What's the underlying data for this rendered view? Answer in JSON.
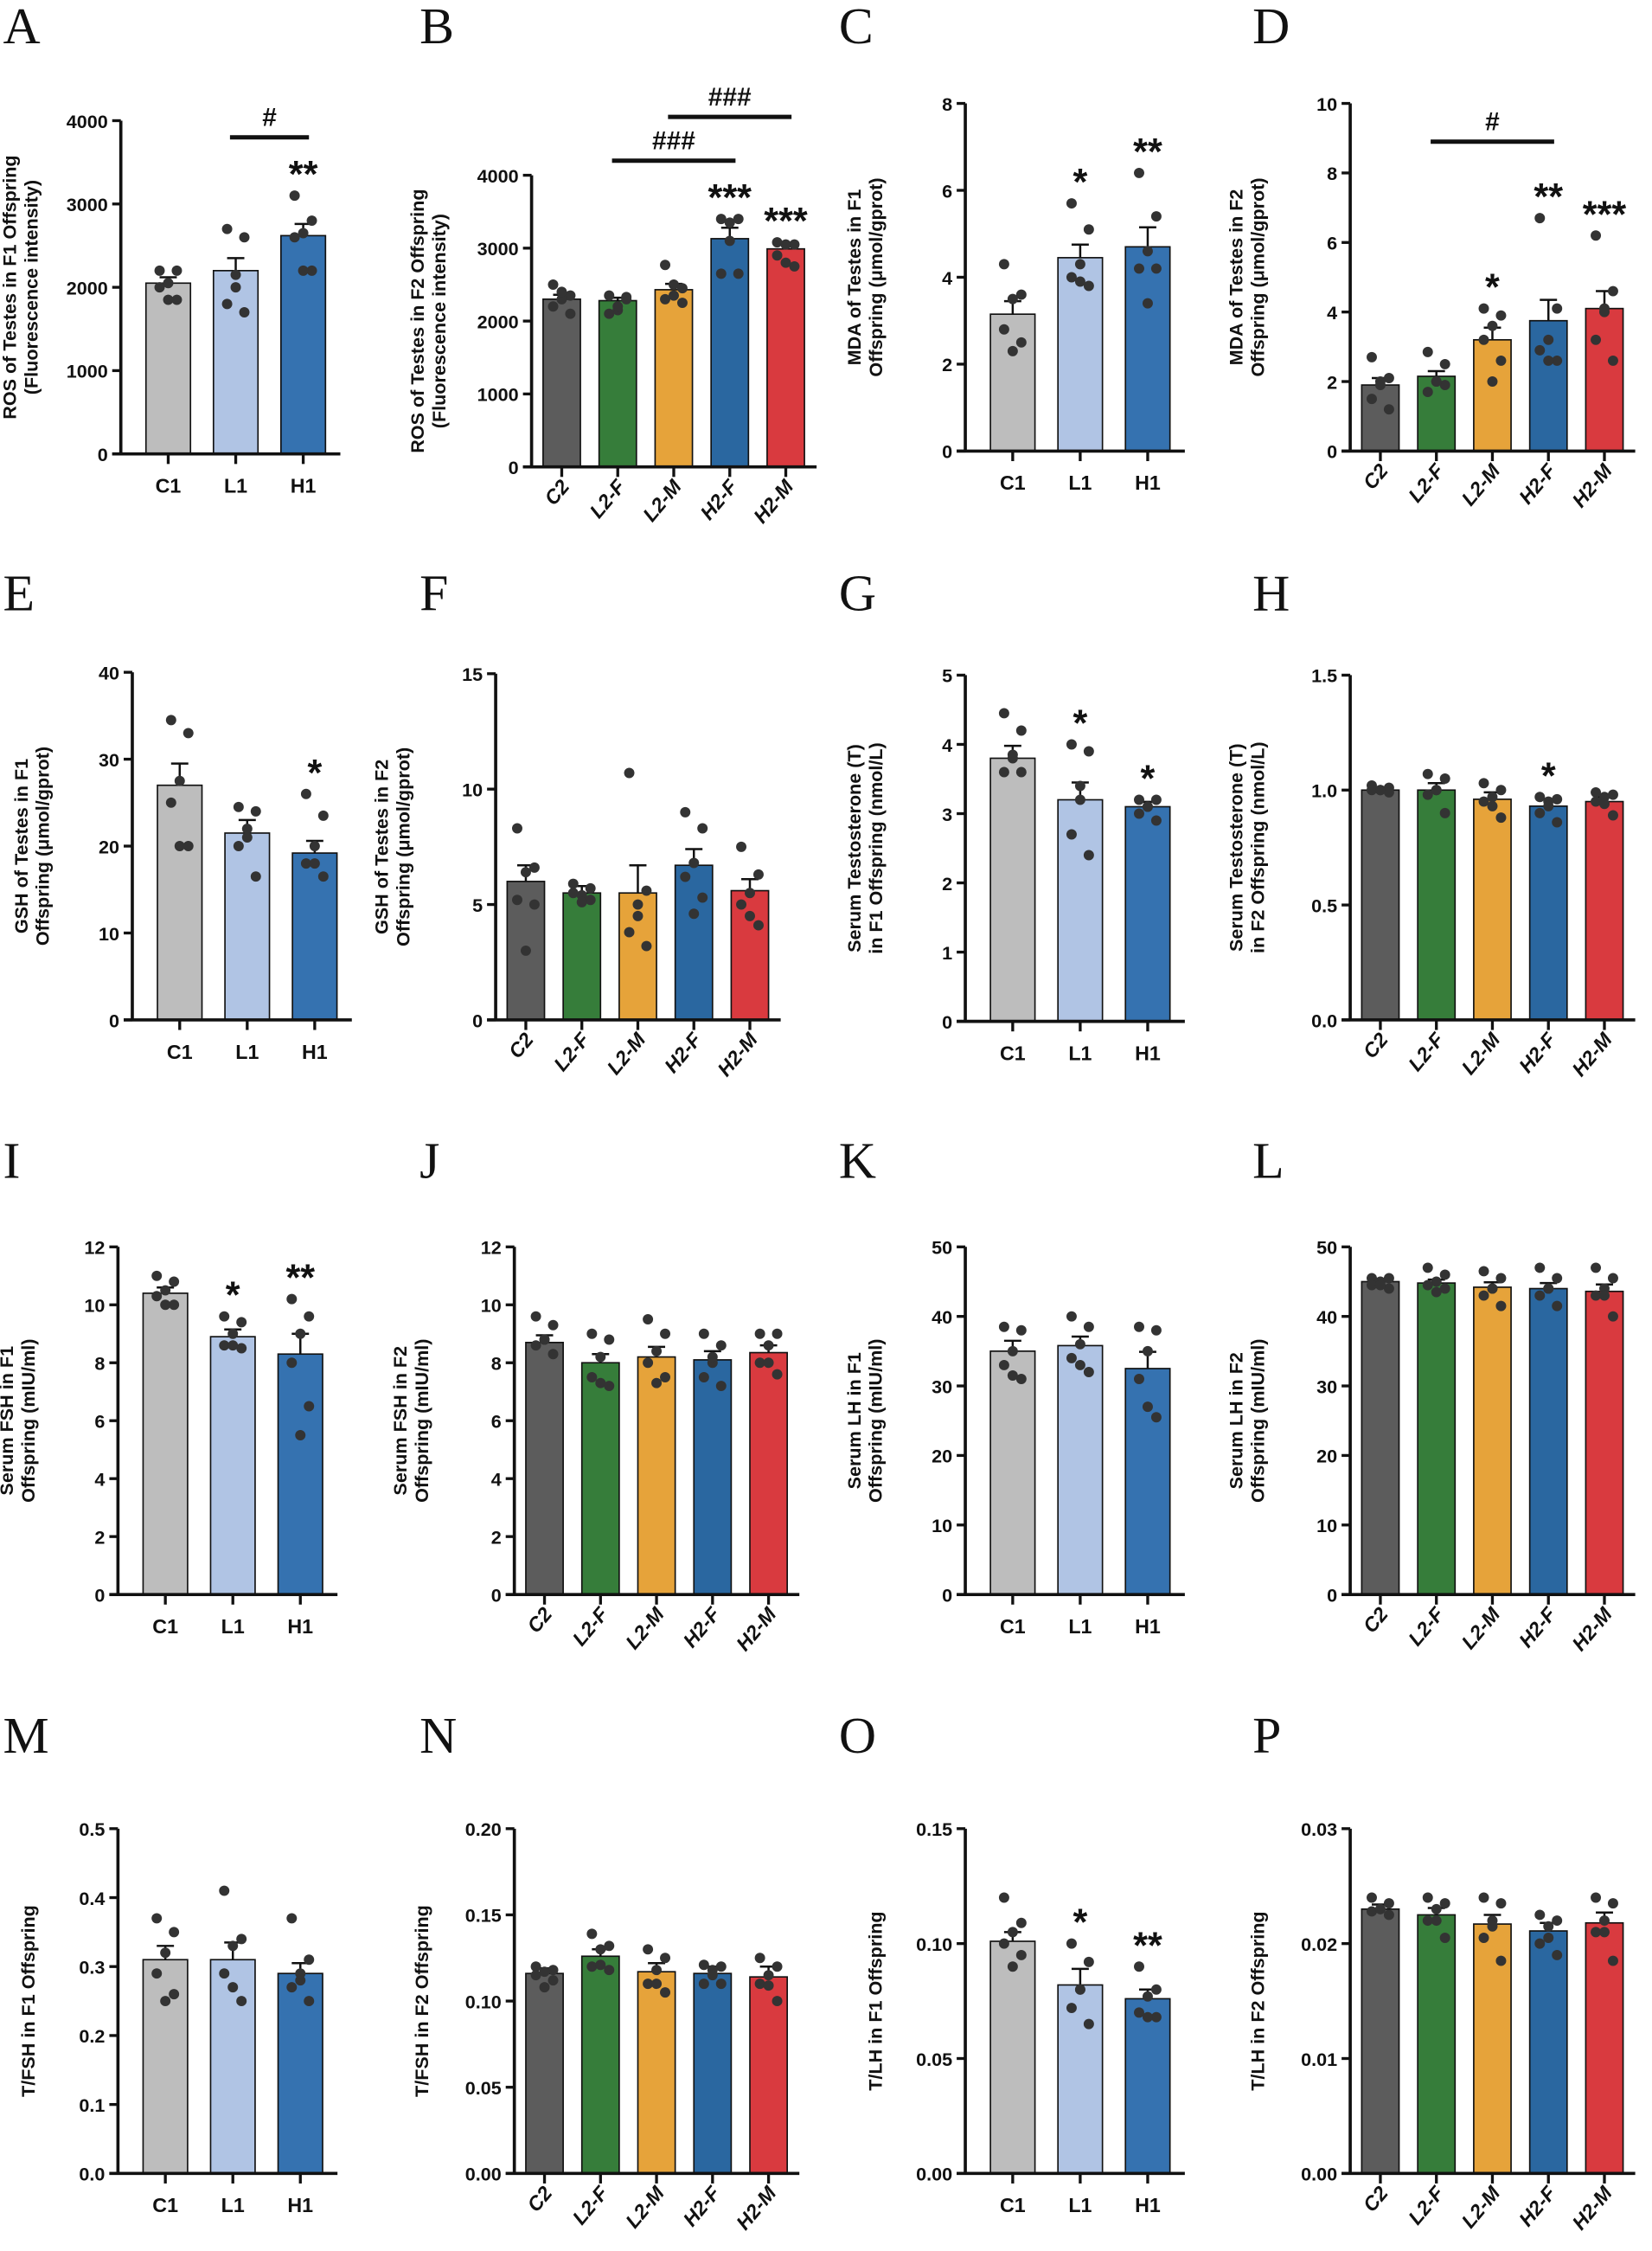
{
  "colors": {
    "C1": "#bdbdbd",
    "L1": "#b0c4e4",
    "H1": "#3572b0",
    "C2": "#5c5c5c",
    "L2-F": "#367d3a",
    "L2-M": "#e6a33a",
    "H2-F": "#2a67a0",
    "H2-M": "#d93a3f"
  },
  "chart_data": [
    {
      "letter": "A",
      "type": "bar",
      "ylabel": [
        "ROS of Testes in F1 Offspring",
        "(Fluorescence intensity)"
      ],
      "ylim": [
        0,
        4000
      ],
      "ticks": [
        "0",
        "1000",
        "2000",
        "3000",
        "4000"
      ],
      "categories": [
        "C1",
        "L1",
        "H1"
      ],
      "means": [
        2050,
        2200,
        2620
      ],
      "sem": [
        70,
        150,
        140
      ],
      "points": [
        [
          2200,
          2200,
          2050,
          2000,
          1850,
          1850
        ],
        [
          2700,
          2600,
          2000,
          1800,
          1700,
          2150
        ],
        [
          3100,
          2800,
          2650,
          2600,
          2200,
          2200
        ]
      ],
      "sig": [
        "",
        "",
        "**"
      ],
      "brackets": [
        {
          "from": 1,
          "to": 2,
          "level": 3800,
          "label": "#"
        }
      ]
    },
    {
      "letter": "B",
      "type": "bar",
      "ylabel": [
        "ROS of Testes in F2 Offspring",
        "(Fluorescence intensity)"
      ],
      "ylim": [
        0,
        4000
      ],
      "ticks": [
        "0",
        "1000",
        "2000",
        "3000",
        "4000"
      ],
      "categories": [
        "C2",
        "L2-F",
        "L2-M",
        "H2-F",
        "H2-M"
      ],
      "means": [
        2300,
        2280,
        2430,
        3130,
        2990
      ],
      "sem": [
        60,
        40,
        80,
        150,
        60
      ],
      "points": [
        [
          2500,
          2350,
          2300,
          2200,
          2100,
          2400
        ],
        [
          2350,
          2330,
          2150,
          2100,
          2300,
          2200
        ],
        [
          2770,
          2450,
          2500,
          2300,
          2250,
          2350
        ],
        [
          3400,
          3400,
          3350,
          2650,
          2650,
          3100
        ],
        [
          3080,
          3050,
          3050,
          2900,
          2750,
          2800
        ]
      ],
      "sig": [
        "",
        "",
        "",
        "***",
        "***"
      ],
      "brackets": [
        {
          "from": 1,
          "to": 3,
          "level": 4200,
          "label": "###"
        },
        {
          "from": 2,
          "to": 4,
          "level": 4800,
          "label": "###"
        }
      ]
    },
    {
      "letter": "C",
      "type": "bar",
      "ylabel": [
        "MDA of Testes in F1",
        "Offspring (μmol/gprot)"
      ],
      "ylim": [
        0,
        8
      ],
      "ticks": [
        "0",
        "2",
        "4",
        "6",
        "8"
      ],
      "categories": [
        "C1",
        "L1",
        "H1"
      ],
      "means": [
        3.15,
        4.45,
        4.7
      ],
      "sem": [
        0.3,
        0.3,
        0.45
      ],
      "points": [
        [
          4.3,
          3.6,
          3.5,
          2.8,
          2.5,
          2.3
        ],
        [
          5.7,
          5.1,
          4.3,
          4.0,
          3.8,
          3.9
        ],
        [
          6.4,
          5.4,
          4.6,
          4.2,
          4.2,
          3.4
        ]
      ],
      "sig": [
        "",
        "*",
        "**"
      ],
      "brackets": []
    },
    {
      "letter": "D",
      "type": "bar",
      "ylabel": [
        "MDA of Testes in F2",
        "Offspring (μmol/gprot)"
      ],
      "ylim": [
        0,
        10
      ],
      "ticks": [
        "0",
        "2",
        "4",
        "6",
        "8",
        "10"
      ],
      "categories": [
        "C2",
        "L2-F",
        "L2-M",
        "H2-F",
        "H2-M"
      ],
      "means": [
        1.9,
        2.15,
        3.2,
        3.75,
        4.1
      ],
      "sem": [
        0.2,
        0.15,
        0.35,
        0.6,
        0.5
      ],
      "points": [
        [
          2.7,
          2.1,
          2.0,
          1.5,
          1.2,
          1.9
        ],
        [
          2.85,
          2.5,
          2.0,
          1.7,
          1.9,
          2.0
        ],
        [
          4.1,
          3.9,
          3.6,
          3.2,
          2.6,
          2.0
        ],
        [
          6.7,
          4.1,
          3.2,
          2.9,
          2.6,
          2.6
        ],
        [
          6.2,
          4.6,
          4.1,
          3.2,
          2.6,
          4.0
        ]
      ],
      "sig": [
        "",
        "",
        "*",
        "**",
        "***"
      ],
      "brackets": [
        {
          "from": 1,
          "to": 3,
          "level": 8.9,
          "label": "#"
        }
      ]
    },
    {
      "letter": "E",
      "type": "bar",
      "ylabel": [
        "GSH of Testes in F1",
        "Offspring (μmol/gprot)"
      ],
      "ylim": [
        0,
        40
      ],
      "ticks": [
        "0",
        "10",
        "20",
        "30",
        "40"
      ],
      "categories": [
        "C1",
        "L1",
        "H1"
      ],
      "means": [
        27,
        21.5,
        19.2
      ],
      "sem": [
        2.5,
        1.5,
        1.4
      ],
      "points": [
        [
          34.5,
          33,
          27.5,
          25,
          20,
          20
        ],
        [
          24.5,
          24,
          21,
          20,
          16.5,
          22
        ],
        [
          26,
          23.5,
          20,
          18,
          16.5,
          18
        ]
      ],
      "sig": [
        "",
        "",
        "*"
      ],
      "brackets": []
    },
    {
      "letter": "F",
      "type": "bar",
      "ylabel": [
        "GSH of Testes in F2",
        "Offspring (μmol/gprot)"
      ],
      "ylim": [
        0,
        15
      ],
      "ticks": [
        "0",
        "5",
        "10",
        "15"
      ],
      "categories": [
        "C2",
        "L2-F",
        "L2-M",
        "H2-F",
        "H2-M"
      ],
      "means": [
        6.0,
        5.5,
        5.5,
        6.7,
        5.6
      ],
      "sem": [
        0.7,
        0.3,
        1.2,
        0.7,
        0.5
      ],
      "points": [
        [
          8.3,
          6.6,
          6.4,
          5.2,
          5.0,
          3.0
        ],
        [
          5.9,
          5.7,
          5.4,
          5.5,
          5.2,
          5.1
        ],
        [
          10.7,
          5.6,
          5.0,
          3.8,
          3.2,
          4.5
        ],
        [
          9.0,
          8.3,
          6.8,
          6.2,
          5.3,
          4.6
        ],
        [
          7.5,
          6.3,
          5.5,
          5.0,
          4.1,
          4.5
        ]
      ],
      "sig": [
        "",
        "",
        "",
        "",
        ""
      ],
      "brackets": []
    },
    {
      "letter": "G",
      "type": "bar",
      "ylabel": [
        "Serum Testosterone (T)",
        "in F1 Offspring (nmol/L)"
      ],
      "ylim": [
        0,
        5
      ],
      "ticks": [
        "0",
        "1",
        "2",
        "3",
        "4",
        "5"
      ],
      "categories": [
        "C1",
        "L1",
        "H1"
      ],
      "means": [
        3.8,
        3.2,
        3.1
      ],
      "sem": [
        0.18,
        0.25,
        0.07
      ],
      "points": [
        [
          4.45,
          4.2,
          3.8,
          3.6,
          3.6,
          3.85
        ],
        [
          4.0,
          3.9,
          3.4,
          2.7,
          2.4,
          3.2
        ],
        [
          3.2,
          3.2,
          3.1,
          3.0,
          2.9,
          3.1
        ]
      ],
      "sig": [
        "",
        "*",
        "*"
      ],
      "brackets": []
    },
    {
      "letter": "H",
      "type": "bar",
      "ylabel": [
        "Serum Testosterone (T)",
        "in F2 Offspring (nmol/L)"
      ],
      "ylim": [
        0,
        1.5
      ],
      "ticks": [
        "0.0",
        "0.5",
        "1.0",
        "1.5"
      ],
      "categories": [
        "C2",
        "L2-F",
        "L2-M",
        "H2-F",
        "H2-M"
      ],
      "means": [
        1.0,
        1.0,
        0.96,
        0.93,
        0.95
      ],
      "sem": [
        0.01,
        0.03,
        0.03,
        0.03,
        0.02
      ],
      "points": [
        [
          1.02,
          1.01,
          1.0,
          1.0,
          0.99,
          1.0
        ],
        [
          1.07,
          1.05,
          1.0,
          0.98,
          0.9,
          1.0
        ],
        [
          1.03,
          1.0,
          0.97,
          0.95,
          0.88,
          0.93
        ],
        [
          0.97,
          0.96,
          0.95,
          0.9,
          0.86,
          0.93
        ],
        [
          0.99,
          0.98,
          0.97,
          0.95,
          0.89,
          0.94
        ]
      ],
      "sig": [
        "",
        "",
        "",
        "*",
        ""
      ],
      "brackets": []
    },
    {
      "letter": "I",
      "type": "bar",
      "ylabel": [
        "Serum FSH in F1",
        "Offspring (mIU/ml)"
      ],
      "ylim": [
        0,
        12
      ],
      "ticks": [
        "0",
        "2",
        "4",
        "6",
        "8",
        "10",
        "12"
      ],
      "categories": [
        "C1",
        "L1",
        "H1"
      ],
      "means": [
        10.4,
        8.9,
        8.3
      ],
      "sem": [
        0.2,
        0.25,
        0.7
      ],
      "points": [
        [
          11.0,
          10.8,
          10.5,
          10.3,
          10.0,
          10.0
        ],
        [
          9.6,
          9.4,
          9.0,
          8.6,
          8.5,
          8.6
        ],
        [
          10.2,
          9.6,
          9.0,
          8.0,
          6.5,
          5.5
        ]
      ],
      "sig": [
        "",
        "*",
        "**"
      ],
      "brackets": []
    },
    {
      "letter": "J",
      "type": "bar",
      "ylabel": [
        "Serum FSH in F2",
        "Offspring (mIU/ml)"
      ],
      "ylim": [
        0,
        12
      ],
      "ticks": [
        "0",
        "2",
        "4",
        "6",
        "8",
        "10",
        "12"
      ],
      "categories": [
        "C2",
        "L2-F",
        "L2-M",
        "H2-F",
        "H2-M"
      ],
      "means": [
        8.7,
        8.0,
        8.2,
        8.1,
        8.35
      ],
      "sem": [
        0.25,
        0.3,
        0.35,
        0.3,
        0.25
      ],
      "points": [
        [
          9.6,
          9.3,
          8.8,
          8.6,
          8.3,
          8.8
        ],
        [
          9.0,
          8.8,
          8.2,
          7.5,
          7.2,
          7.3
        ],
        [
          9.5,
          9.0,
          8.4,
          8.0,
          7.5,
          7.3
        ],
        [
          9.0,
          8.6,
          8.0,
          7.5,
          7.2,
          8.2
        ],
        [
          9.0,
          9.0,
          8.6,
          8.0,
          7.6,
          8.0
        ]
      ],
      "sig": [
        "",
        "",
        "",
        "",
        ""
      ],
      "brackets": []
    },
    {
      "letter": "K",
      "type": "bar",
      "ylabel": [
        "Serum LH in F1",
        "Offspring (mIU/ml)"
      ],
      "ylim": [
        0,
        50
      ],
      "ticks": [
        "0",
        "10",
        "20",
        "30",
        "40",
        "50"
      ],
      "categories": [
        "C1",
        "L1",
        "H1"
      ],
      "means": [
        35,
        35.8,
        32.5
      ],
      "sem": [
        1.5,
        1.3,
        2.4
      ],
      "points": [
        [
          38.5,
          38,
          35,
          33,
          31,
          31.5
        ],
        [
          40,
          38.5,
          36,
          34,
          32,
          33
        ],
        [
          38.5,
          38,
          35,
          31,
          25.5,
          27
        ]
      ],
      "sig": [
        "",
        "",
        ""
      ],
      "brackets": []
    },
    {
      "letter": "L",
      "type": "bar",
      "ylabel": [
        "Serum LH in F2",
        "Offspring (mIU/ml)"
      ],
      "ylim": [
        0,
        50
      ],
      "ticks": [
        "0",
        "10",
        "20",
        "30",
        "40",
        "50"
      ],
      "categories": [
        "C2",
        "L2-F",
        "L2-M",
        "H2-F",
        "H2-M"
      ],
      "means": [
        45,
        44.8,
        44.2,
        44.0,
        43.6
      ],
      "sem": [
        0.3,
        0.5,
        0.7,
        0.8,
        1.0
      ],
      "points": [
        [
          45.5,
          45.5,
          45,
          44.5,
          44,
          44.5
        ],
        [
          47,
          46,
          45,
          44.5,
          44,
          43.5
        ],
        [
          46.5,
          45.5,
          44,
          43,
          41.5,
          44
        ],
        [
          47,
          45.5,
          44,
          43,
          41.5,
          44
        ],
        [
          47,
          45.5,
          44,
          43,
          40,
          43
        ]
      ],
      "sig": [
        "",
        "",
        "",
        "",
        ""
      ],
      "brackets": []
    },
    {
      "letter": "M",
      "type": "bar",
      "ylabel": [
        "T/FSH in F1 Offspring"
      ],
      "ylim": [
        0,
        0.5
      ],
      "ticks": [
        "0.0",
        "0.1",
        "0.2",
        "0.3",
        "0.4",
        "0.5"
      ],
      "categories": [
        "C1",
        "L1",
        "H1"
      ],
      "means": [
        0.31,
        0.31,
        0.29
      ],
      "sem": [
        0.02,
        0.025,
        0.015
      ],
      "points": [
        [
          0.37,
          0.35,
          0.32,
          0.29,
          0.26,
          0.25
        ],
        [
          0.41,
          0.34,
          0.33,
          0.29,
          0.25,
          0.27
        ],
        [
          0.37,
          0.31,
          0.28,
          0.27,
          0.25,
          0.29
        ]
      ],
      "sig": [
        "",
        "",
        ""
      ],
      "brackets": []
    },
    {
      "letter": "N",
      "type": "bar",
      "ylabel": [
        "T/FSH in F2 Offspring"
      ],
      "ylim": [
        0,
        0.2
      ],
      "ticks": [
        "0.00",
        "0.05",
        "0.10",
        "0.15",
        "0.20"
      ],
      "categories": [
        "C2",
        "L2-F",
        "L2-M",
        "H2-F",
        "H2-M"
      ],
      "means": [
        0.116,
        0.126,
        0.117,
        0.116,
        0.114
      ],
      "sem": [
        0.003,
        0.004,
        0.005,
        0.004,
        0.006
      ],
      "points": [
        [
          0.12,
          0.118,
          0.117,
          0.115,
          0.112,
          0.108
        ],
        [
          0.139,
          0.132,
          0.13,
          0.12,
          0.118,
          0.121
        ],
        [
          0.13,
          0.125,
          0.118,
          0.11,
          0.105,
          0.11
        ],
        [
          0.121,
          0.12,
          0.118,
          0.11,
          0.11,
          0.115
        ],
        [
          0.125,
          0.12,
          0.115,
          0.11,
          0.1,
          0.109
        ]
      ],
      "sig": [
        "",
        "",
        "",
        "",
        ""
      ],
      "brackets": []
    },
    {
      "letter": "O",
      "type": "bar",
      "ylabel": [
        "T/LH in F1 Offspring"
      ],
      "ylim": [
        0,
        0.15
      ],
      "ticks": [
        "0.00",
        "0.05",
        "0.10",
        "0.15"
      ],
      "categories": [
        "C1",
        "L1",
        "H1"
      ],
      "means": [
        0.101,
        0.082,
        0.076
      ],
      "sem": [
        0.004,
        0.007,
        0.004
      ],
      "points": [
        [
          0.12,
          0.109,
          0.105,
          0.1,
          0.095,
          0.09
        ],
        [
          0.1,
          0.092,
          0.08,
          0.072,
          0.065,
          0.08
        ],
        [
          0.09,
          0.08,
          0.077,
          0.07,
          0.068,
          0.068
        ]
      ],
      "sig": [
        "",
        "*",
        "**"
      ],
      "brackets": []
    },
    {
      "letter": "P",
      "type": "bar",
      "ylabel": [
        "T/LH in F2 Offspring"
      ],
      "ylim": [
        0,
        0.03
      ],
      "ticks": [
        "0.00",
        "0.01",
        "0.02",
        "0.03"
      ],
      "categories": [
        "C2",
        "L2-F",
        "L2-M",
        "H2-F",
        "H2-M"
      ],
      "means": [
        0.023,
        0.0225,
        0.0217,
        0.0211,
        0.0218
      ],
      "sem": [
        0.0004,
        0.0006,
        0.0008,
        0.0007,
        0.0009
      ],
      "points": [
        [
          0.024,
          0.0235,
          0.023,
          0.0228,
          0.0225,
          0.023
        ],
        [
          0.024,
          0.0235,
          0.023,
          0.022,
          0.0205,
          0.022
        ],
        [
          0.024,
          0.0235,
          0.022,
          0.0205,
          0.0185,
          0.0215
        ],
        [
          0.0225,
          0.022,
          0.0215,
          0.02,
          0.019,
          0.0205
        ],
        [
          0.024,
          0.0235,
          0.022,
          0.021,
          0.0185,
          0.021
        ]
      ],
      "sig": [
        "",
        "",
        "",
        "",
        ""
      ],
      "brackets": []
    }
  ]
}
